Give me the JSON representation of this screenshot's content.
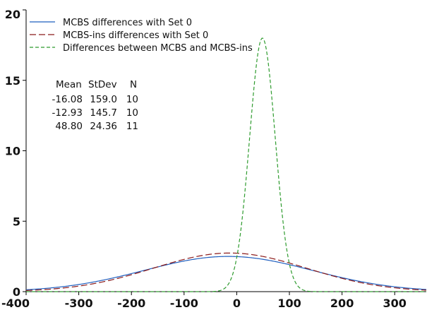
{
  "chart_data": {
    "type": "line",
    "title": "",
    "xlabel": "",
    "ylabel": "",
    "xlim": [
      -400,
      360
    ],
    "ylim": [
      0,
      20
    ],
    "x_ticks": [
      -400,
      -300,
      -200,
      -100,
      0,
      100,
      200,
      300
    ],
    "y_ticks": [
      0,
      5,
      10,
      15,
      20
    ],
    "grid": false,
    "legend_position": "top-left",
    "series": [
      {
        "name": "MCBS differences with Set 0",
        "color": "#1f5fbf",
        "line_style": "solid",
        "mean": -16.08,
        "stdev": 159.0,
        "n": 10,
        "peak": 2.5
      },
      {
        "name": "MCBS-ins differences with Set 0",
        "color": "#8b1a1a",
        "line_style": "dashed",
        "mean": -12.93,
        "stdev": 145.7,
        "n": 10,
        "peak": 2.74
      },
      {
        "name": "Differences between MCBS and MCBS-ins",
        "color": "#2e9b2e",
        "line_style": "dashed",
        "mean": 48.8,
        "stdev": 24.36,
        "n": 11,
        "peak": 18.0
      }
    ],
    "stats_table": {
      "headers": [
        "Mean",
        "StDev",
        "N"
      ],
      "rows": [
        [
          "-16.08",
          "159.0",
          "10"
        ],
        [
          "-12.93",
          "145.7",
          "10"
        ],
        [
          "48.80",
          "24.36",
          "11"
        ]
      ]
    }
  }
}
